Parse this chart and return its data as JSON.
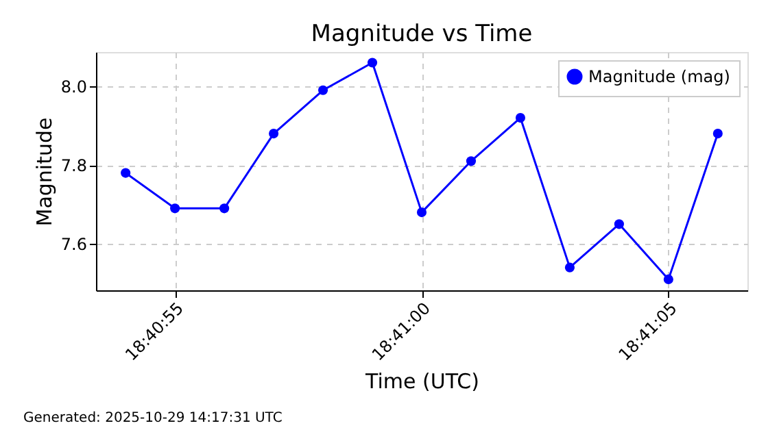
{
  "chart_data": {
    "type": "line",
    "title": "Magnitude vs Time",
    "xlabel": "Time (UTC)",
    "ylabel": "Magnitude",
    "x": [
      67254,
      67255,
      67256,
      67257,
      67258,
      67259,
      67260,
      67261,
      67262,
      67263,
      67264,
      67265,
      67266
    ],
    "series": [
      {
        "name": "Magnitude (mag)",
        "color": "#0000ff",
        "values": [
          7.78,
          7.69,
          7.69,
          7.88,
          7.99,
          8.06,
          7.68,
          7.81,
          7.92,
          7.54,
          7.65,
          7.51,
          7.88
        ]
      }
    ],
    "xlim": [
      67253.4,
      67266.6
    ],
    "xticks": [
      {
        "value": 67255,
        "label": "18:40:55"
      },
      {
        "value": 67260,
        "label": "18:41:00"
      },
      {
        "value": 67265,
        "label": "18:41:05"
      }
    ],
    "ylim": [
      7.482,
      8.087
    ],
    "yticks": [
      {
        "value": 7.6,
        "label": "7.6"
      },
      {
        "value": 7.8,
        "label": "7.8"
      },
      {
        "value": 8.0,
        "label": "8.0"
      }
    ],
    "grid": true,
    "legend": "top right",
    "marker": "circle",
    "line_style": "solid",
    "annotations": [
      "Generated: 2025-10-29 14:17:31 UTC"
    ]
  }
}
